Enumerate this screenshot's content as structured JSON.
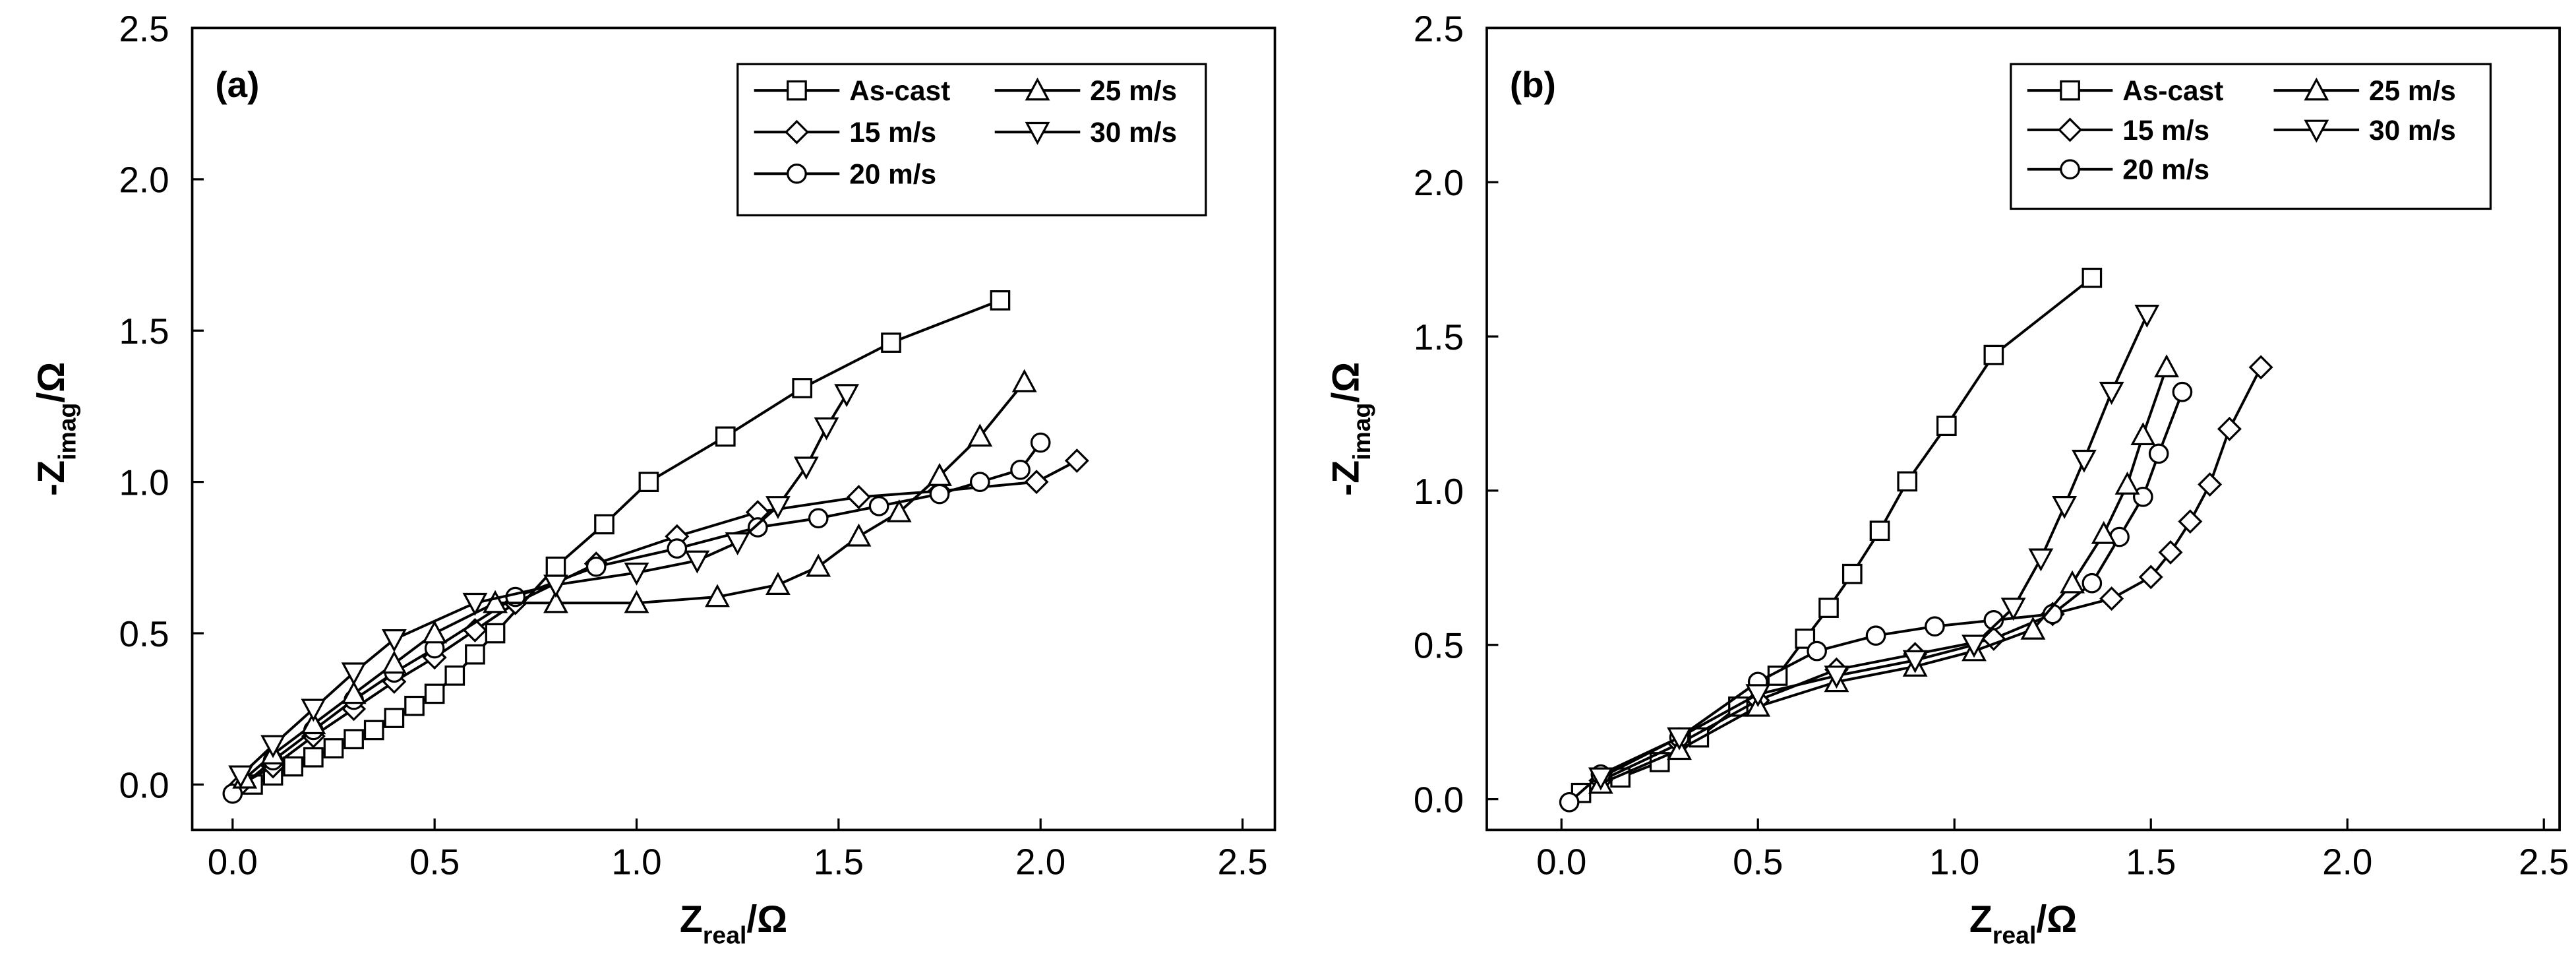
{
  "chart_data": [
    {
      "type": "line",
      "panel_label": "(a)",
      "x_label": [
        "Z",
        "real",
        "/Ω"
      ],
      "y_label": [
        "-Z",
        "imag",
        "/Ω"
      ],
      "xlim": [
        -0.1,
        2.58
      ],
      "ylim": [
        -0.15,
        2.5
      ],
      "xticks": [
        {
          "value": 0,
          "label": "0.0"
        },
        0.5,
        {
          "value": 1,
          "label": "1.0"
        },
        1.5,
        {
          "value": 2,
          "label": "2.0"
        },
        2.5
      ],
      "yticks": [
        {
          "value": 0,
          "label": "0.0"
        },
        0.5,
        {
          "value": 1,
          "label": "1.0"
        },
        1.5,
        {
          "value": 2,
          "label": "2.0"
        },
        2.5
      ],
      "legend": "upper right",
      "series": [
        {
          "name": "As-cast",
          "marker": "square",
          "color": "#000000",
          "x": [
            0.05,
            0.1,
            0.15,
            0.2,
            0.25,
            0.3,
            0.35,
            0.4,
            0.45,
            0.5,
            0.55,
            0.6,
            0.65,
            0.8,
            0.92,
            1.03,
            1.22,
            1.41,
            1.63,
            1.9
          ],
          "values": [
            0.0,
            0.03,
            0.06,
            0.09,
            0.12,
            0.15,
            0.18,
            0.22,
            0.26,
            0.3,
            0.36,
            0.43,
            0.5,
            0.72,
            0.86,
            1.0,
            1.15,
            1.31,
            1.46,
            1.6
          ]
        },
        {
          "name": "15 m/s",
          "marker": "diamond",
          "color": "#000000",
          "x": [
            0.02,
            0.1,
            0.2,
            0.3,
            0.4,
            0.5,
            0.6,
            0.7,
            0.9,
            1.1,
            1.3,
            1.55,
            1.75,
            1.99,
            2.09
          ],
          "values": [
            0.0,
            0.06,
            0.16,
            0.25,
            0.34,
            0.42,
            0.51,
            0.6,
            0.73,
            0.82,
            0.9,
            0.95,
            0.97,
            1.0,
            1.07
          ]
        },
        {
          "name": "20 m/s",
          "marker": "circle",
          "color": "#000000",
          "x": [
            0.0,
            0.1,
            0.2,
            0.3,
            0.4,
            0.5,
            0.7,
            0.9,
            1.1,
            1.3,
            1.45,
            1.6,
            1.75,
            1.85,
            1.95,
            2.0
          ],
          "values": [
            -0.03,
            0.08,
            0.18,
            0.28,
            0.37,
            0.45,
            0.62,
            0.72,
            0.78,
            0.85,
            0.88,
            0.92,
            0.96,
            1.0,
            1.04,
            1.13
          ]
        },
        {
          "name": "25 m/s",
          "marker": "triangle-up",
          "color": "#000000",
          "x": [
            0.03,
            0.1,
            0.2,
            0.3,
            0.4,
            0.5,
            0.65,
            0.8,
            1.0,
            1.2,
            1.35,
            1.45,
            1.55,
            1.65,
            1.75,
            1.85,
            1.96
          ],
          "values": [
            0.02,
            0.1,
            0.2,
            0.3,
            0.4,
            0.5,
            0.6,
            0.6,
            0.6,
            0.62,
            0.66,
            0.72,
            0.82,
            0.9,
            1.02,
            1.15,
            1.33
          ]
        },
        {
          "name": "30 m/s",
          "marker": "triangle-down",
          "color": "#000000",
          "x": [
            0.02,
            0.1,
            0.2,
            0.3,
            0.4,
            0.6,
            0.8,
            1.0,
            1.15,
            1.25,
            1.35,
            1.42,
            1.47,
            1.52
          ],
          "values": [
            0.03,
            0.13,
            0.25,
            0.37,
            0.48,
            0.6,
            0.66,
            0.7,
            0.74,
            0.8,
            0.92,
            1.05,
            1.18,
            1.29
          ]
        }
      ]
    },
    {
      "type": "line",
      "panel_label": "(b)",
      "x_label": [
        "Z",
        "real",
        "/Ω"
      ],
      "y_label": [
        "-Z",
        "imag",
        "/Ω"
      ],
      "xlim": [
        -0.19,
        2.54
      ],
      "ylim": [
        -0.1,
        2.5
      ],
      "xticks": [
        {
          "value": 0,
          "label": "0.0"
        },
        0.5,
        {
          "value": 1,
          "label": "1.0"
        },
        1.5,
        {
          "value": 2,
          "label": "2.0"
        },
        2.5
      ],
      "yticks": [
        {
          "value": 0,
          "label": "0.0"
        },
        0.5,
        {
          "value": 1,
          "label": "1.0"
        },
        1.5,
        {
          "value": 2,
          "label": "2.0"
        },
        2.5
      ],
      "legend": "upper right",
      "series": [
        {
          "name": "As-cast",
          "marker": "square",
          "color": "#000000",
          "x": [
            0.05,
            0.15,
            0.25,
            0.35,
            0.45,
            0.55,
            0.62,
            0.68,
            0.74,
            0.81,
            0.88,
            0.98,
            1.1,
            1.35
          ],
          "values": [
            0.02,
            0.07,
            0.12,
            0.2,
            0.3,
            0.4,
            0.52,
            0.62,
            0.73,
            0.87,
            1.03,
            1.21,
            1.44,
            1.69
          ]
        },
        {
          "name": "15 m/s",
          "marker": "diamond",
          "color": "#000000",
          "x": [
            0.1,
            0.3,
            0.5,
            0.7,
            0.9,
            1.1,
            1.25,
            1.4,
            1.5,
            1.55,
            1.6,
            1.65,
            1.7,
            1.78
          ],
          "values": [
            0.06,
            0.18,
            0.32,
            0.42,
            0.47,
            0.52,
            0.6,
            0.65,
            0.72,
            0.8,
            0.9,
            1.02,
            1.2,
            1.4
          ]
        },
        {
          "name": "20 m/s",
          "marker": "circle",
          "color": "#000000",
          "x": [
            0.02,
            0.1,
            0.3,
            0.5,
            0.65,
            0.8,
            0.95,
            1.1,
            1.25,
            1.35,
            1.42,
            1.48,
            1.52,
            1.58
          ],
          "values": [
            -0.01,
            0.08,
            0.2,
            0.38,
            0.48,
            0.53,
            0.56,
            0.58,
            0.6,
            0.7,
            0.85,
            0.98,
            1.12,
            1.32
          ]
        },
        {
          "name": "25 m/s",
          "marker": "triangle-up",
          "color": "#000000",
          "x": [
            0.1,
            0.3,
            0.5,
            0.7,
            0.9,
            1.05,
            1.2,
            1.3,
            1.38,
            1.44,
            1.48,
            1.54
          ],
          "values": [
            0.05,
            0.16,
            0.3,
            0.38,
            0.43,
            0.48,
            0.55,
            0.7,
            0.86,
            1.02,
            1.18,
            1.4
          ]
        },
        {
          "name": "30 m/s",
          "marker": "triangle-down",
          "color": "#000000",
          "x": [
            0.1,
            0.3,
            0.5,
            0.7,
            0.9,
            1.05,
            1.15,
            1.22,
            1.28,
            1.33,
            1.4,
            1.49
          ],
          "values": [
            0.07,
            0.2,
            0.34,
            0.4,
            0.45,
            0.5,
            0.62,
            0.78,
            0.95,
            1.1,
            1.32,
            1.57
          ]
        }
      ]
    }
  ]
}
